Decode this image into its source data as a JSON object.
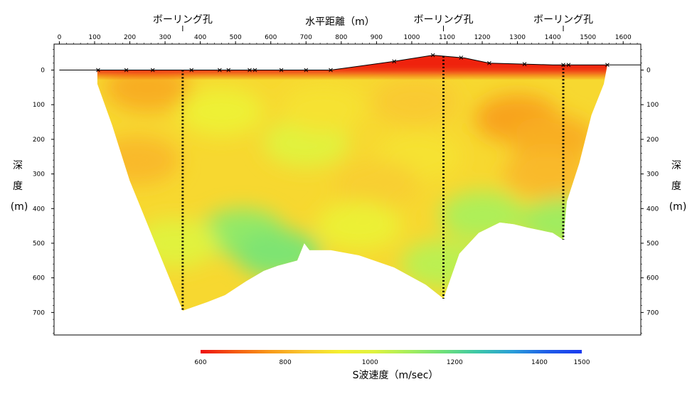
{
  "chart_data": {
    "type": "heatmap",
    "title": "",
    "xlabel": "水平距離（m）",
    "ylabel_left": [
      "深",
      "度",
      "(m)"
    ],
    "ylabel_right": [
      "深",
      "度",
      "(m)"
    ],
    "colorbar_label": "S波速度（m/sec）",
    "x_range": [
      -15,
      1650
    ],
    "y_range": [
      -75,
      765
    ],
    "x_ticks": [
      0,
      100,
      200,
      300,
      400,
      500,
      600,
      700,
      800,
      900,
      1000,
      1100,
      1200,
      1300,
      1400,
      1500,
      1600
    ],
    "y_ticks": [
      0,
      100,
      200,
      300,
      400,
      500,
      600,
      700
    ],
    "colorbar_range": [
      600,
      1500
    ],
    "colorbar_ticks": [
      600,
      800,
      1000,
      1200,
      1400,
      1500
    ],
    "colorscale": [
      "#ee1111",
      "#f45a10",
      "#f89a1a",
      "#f9c830",
      "#f4ef30",
      "#dff23f",
      "#a6ee5c",
      "#6ee07a",
      "#3cc7a8",
      "#2a9ed8",
      "#1f5de8",
      "#1a3af0"
    ],
    "boreholes": [
      {
        "label": "ボーリング孔",
        "x": 350,
        "depth": 695
      },
      {
        "label": "ボーリング孔",
        "x": 1090,
        "depth": 660
      },
      {
        "label": "ボーリング孔",
        "x": 1430,
        "depth": 490
      }
    ],
    "surface_profile": [
      [
        0,
        0
      ],
      [
        105,
        0
      ],
      [
        770,
        0
      ],
      [
        950,
        -25
      ],
      [
        1060,
        -43
      ],
      [
        1150,
        -35
      ],
      [
        1220,
        -20
      ],
      [
        1400,
        -15
      ],
      [
        1650,
        -15
      ]
    ],
    "geophones": [
      110,
      190,
      265,
      375,
      455,
      480,
      540,
      555,
      630,
      700,
      770,
      950,
      1060,
      1140,
      1220,
      1320,
      1430,
      1445,
      1555
    ],
    "section_outline": [
      [
        108,
        0
      ],
      [
        770,
        0
      ],
      [
        950,
        -25
      ],
      [
        1060,
        -43
      ],
      [
        1150,
        -35
      ],
      [
        1220,
        -20
      ],
      [
        1400,
        -15
      ],
      [
        1555,
        -15
      ],
      [
        1545,
        40
      ],
      [
        1510,
        130
      ],
      [
        1475,
        270
      ],
      [
        1440,
        380
      ],
      [
        1430,
        490
      ],
      [
        1400,
        470
      ],
      [
        1330,
        455
      ],
      [
        1290,
        445
      ],
      [
        1250,
        440
      ],
      [
        1190,
        470
      ],
      [
        1135,
        530
      ],
      [
        1090,
        660
      ],
      [
        1040,
        620
      ],
      [
        950,
        570
      ],
      [
        850,
        535
      ],
      [
        770,
        520
      ],
      [
        710,
        520
      ],
      [
        695,
        500
      ],
      [
        675,
        550
      ],
      [
        620,
        565
      ],
      [
        580,
        580
      ],
      [
        530,
        610
      ],
      [
        470,
        650
      ],
      [
        420,
        670
      ],
      [
        350,
        695
      ],
      [
        320,
        620
      ],
      [
        260,
        470
      ],
      [
        200,
        320
      ],
      [
        150,
        160
      ],
      [
        108,
        40
      ]
    ],
    "velocity_cells": [
      {
        "x": 700,
        "y": 210,
        "value": 1000
      },
      {
        "x": 250,
        "y": 50,
        "value": 800
      },
      {
        "x": 750,
        "y": 110,
        "value": 900
      },
      {
        "x": 1020,
        "y": 250,
        "value": 900
      },
      {
        "x": 1010,
        "y": 90,
        "value": 850
      },
      {
        "x": 1300,
        "y": 140,
        "value": 780
      },
      {
        "x": 1400,
        "y": 200,
        "value": 800
      },
      {
        "x": 1380,
        "y": 300,
        "value": 820
      },
      {
        "x": 900,
        "y": 330,
        "value": 860
      },
      {
        "x": 520,
        "y": 470,
        "value": 1120
      },
      {
        "x": 620,
        "y": 530,
        "value": 1150
      },
      {
        "x": 220,
        "y": 260,
        "value": 820
      },
      {
        "x": 330,
        "y": 500,
        "value": 1000
      },
      {
        "x": 460,
        "y": 120,
        "value": 950
      },
      {
        "x": 1200,
        "y": 420,
        "value": 1080
      },
      {
        "x": 1430,
        "y": 440,
        "value": 1100
      },
      {
        "x": 850,
        "y": 450,
        "value": 960
      },
      {
        "x": 1090,
        "y": 560,
        "value": 1060
      }
    ],
    "near_surface_value": 620,
    "margin_value": 880,
    "grid": false
  }
}
